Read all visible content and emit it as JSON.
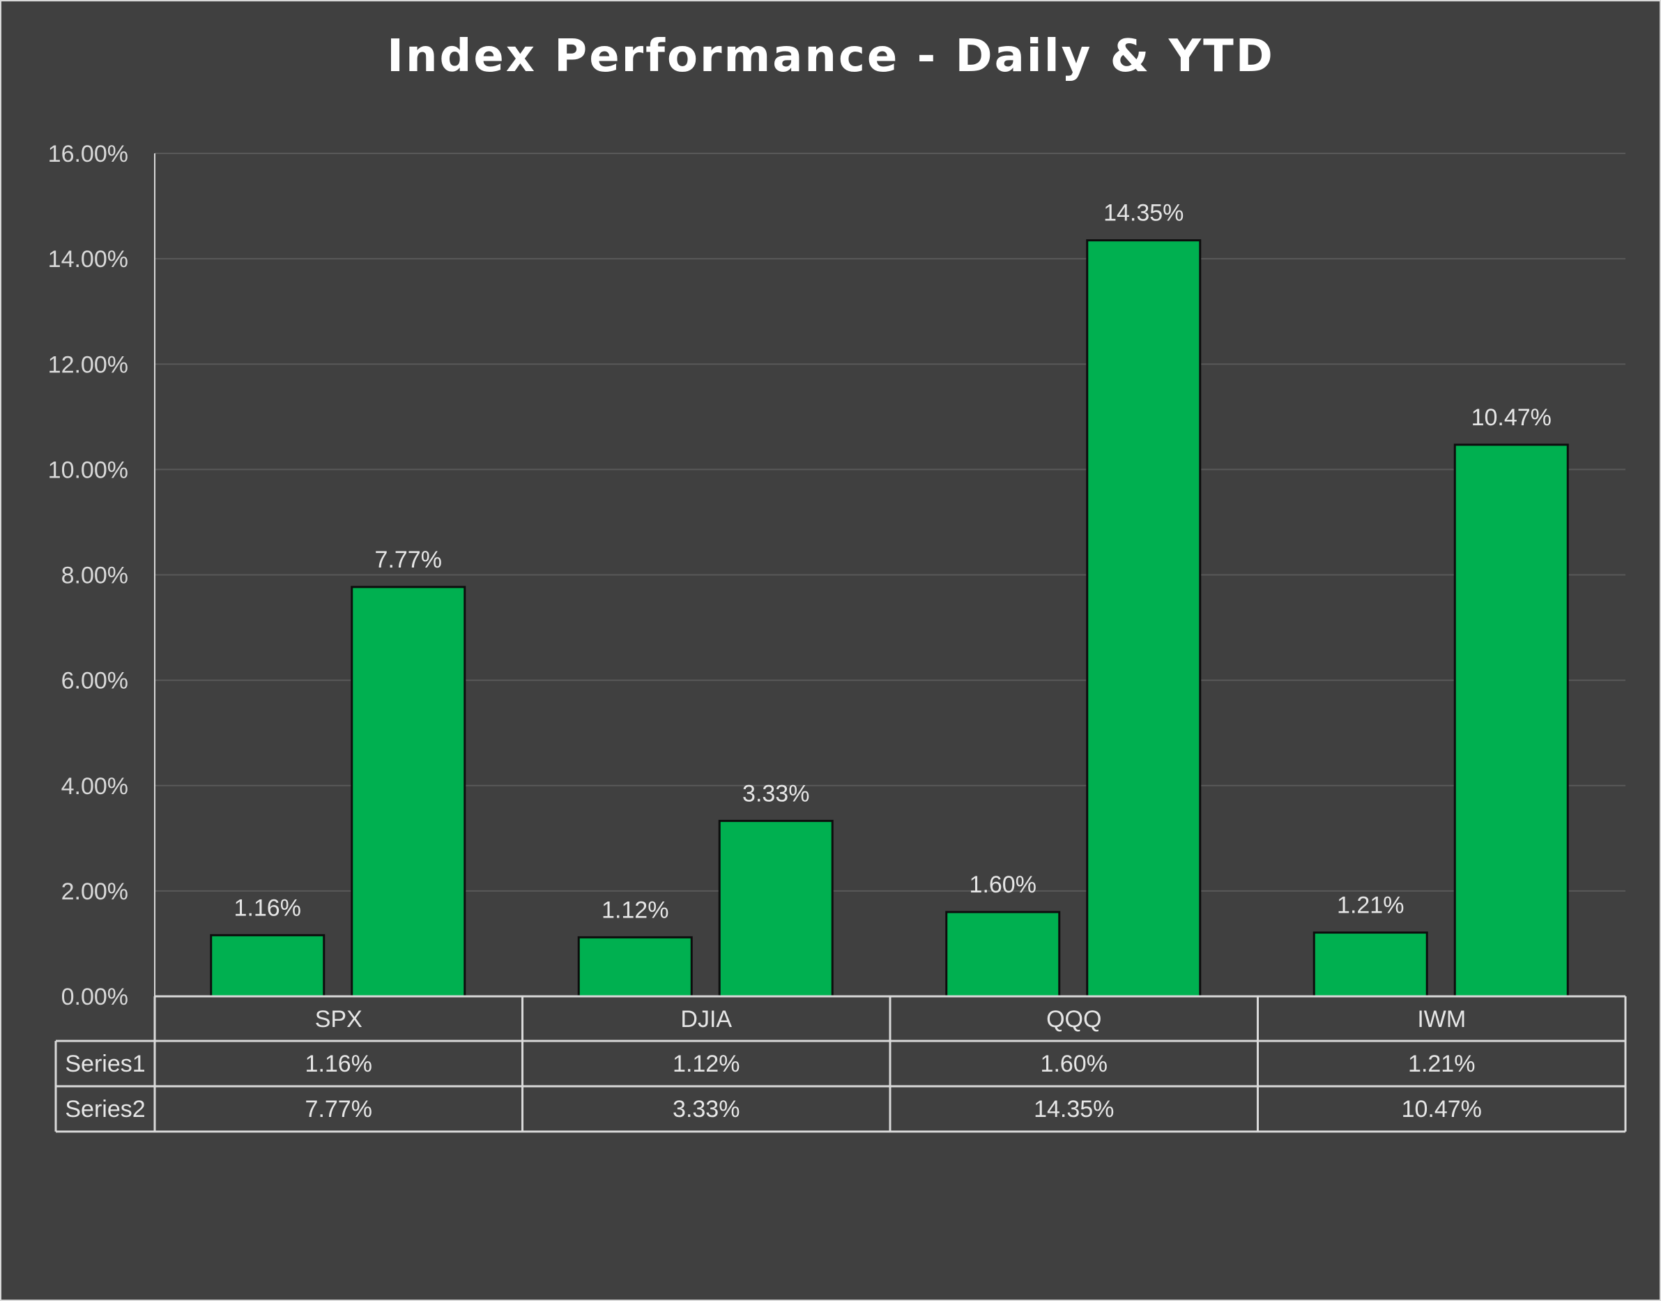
{
  "chart_data": {
    "type": "bar",
    "title": "Index Performance - Daily & YTD",
    "categories": [
      "SPX",
      "DJIA",
      "QQQ",
      "IWM"
    ],
    "series": [
      {
        "name": "Series1",
        "values": [
          1.16,
          1.12,
          1.6,
          1.21
        ],
        "labels": [
          "1.16%",
          "1.12%",
          "1.60%",
          "1.21%"
        ]
      },
      {
        "name": "Series2",
        "values": [
          7.77,
          3.33,
          14.35,
          10.47
        ],
        "labels": [
          "7.77%",
          "3.33%",
          "14.35%",
          "10.47%"
        ]
      }
    ],
    "ylim": [
      0,
      16
    ],
    "yticks": [
      0,
      2,
      4,
      6,
      8,
      10,
      12,
      14,
      16
    ],
    "ytick_labels": [
      "0.00%",
      "2.00%",
      "4.00%",
      "6.00%",
      "8.00%",
      "10.00%",
      "12.00%",
      "14.00%",
      "16.00%"
    ],
    "xlabel": "",
    "ylabel": "",
    "grid": true,
    "legend": "data table below chart",
    "data_table": true
  },
  "colors": {
    "background": "#404040",
    "bar_fill": "#00b050",
    "bar_stroke": "#0d0d0d",
    "gridline": "#595959",
    "axis_line": "#d9d9d9",
    "table_line": "#d9d9d9",
    "title": "#ffffff",
    "text": "#e6e6e6"
  }
}
